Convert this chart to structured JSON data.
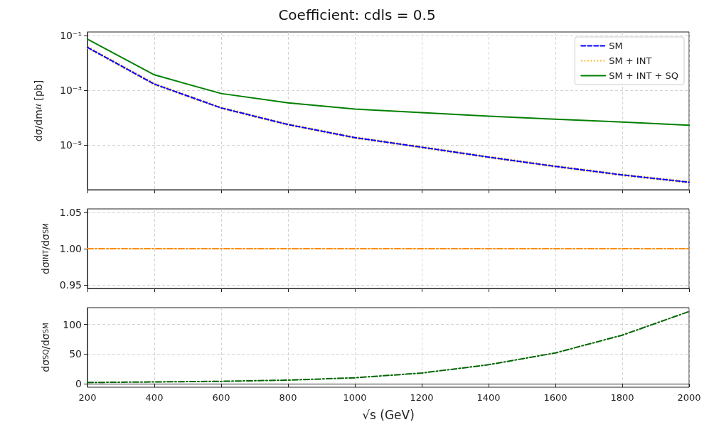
{
  "chart_data": [
    {
      "type": "line",
      "title": "Coefficient: cdls = 0.5",
      "ylabel": "dσ/dm$_{ℓℓ}$ [pb]",
      "x": [
        200,
        400,
        600,
        800,
        1000,
        1200,
        1400,
        1600,
        1800,
        2000
      ],
      "xlim": [
        200,
        2000
      ],
      "xticks": [
        200,
        400,
        600,
        800,
        1000,
        1200,
        1400,
        1600,
        1800,
        2000
      ],
      "log": "y",
      "ylim": [
        2.4e-07,
        0.135
      ],
      "yticks": [
        {
          "value": 0.1,
          "label": "10⁻¹"
        },
        {
          "value": 0.001,
          "label": "10⁻³"
        },
        {
          "value": 1e-05,
          "label": "10⁻⁵"
        }
      ],
      "grid": true,
      "legend": "top right",
      "tick_labels": "y",
      "series": [
        {
          "name": "SM",
          "color": "#0000ff",
          "line_style": "dashed",
          "values": [
            0.037,
            0.0017,
            0.00023,
            5.7e-05,
            1.9e-05,
            8.5e-06,
            3.7e-06,
            1.7e-06,
            8.3e-07,
            4.5e-07
          ]
        },
        {
          "name": "SM + INT",
          "color": "#ffa500",
          "line_style": "dotted",
          "values": [
            0.037,
            0.0017,
            0.00023,
            5.7e-05,
            1.9e-05,
            8.5e-06,
            3.7e-06,
            1.7e-06,
            8.3e-07,
            4.5e-07
          ]
        },
        {
          "name": "SM + INT + SQ",
          "color": "#008000",
          "line_style": "solid",
          "values": [
            0.074,
            0.0037,
            0.00077,
            0.00035,
            0.00021,
            0.000156,
            0.000115,
            8.9e-05,
            7e-05,
            5.4e-05
          ]
        }
      ]
    },
    {
      "type": "line",
      "ylabel": "dσ$_{INT}$/dσ$_{SM}$",
      "x": [
        200,
        400,
        600,
        800,
        1000,
        1200,
        1400,
        1600,
        1800,
        2000
      ],
      "xlim": [
        200,
        2000
      ],
      "xticks": [
        200,
        400,
        600,
        800,
        1000,
        1200,
        1400,
        1600,
        1800,
        2000
      ],
      "ylim": [
        0.945,
        1.055
      ],
      "yticks": [
        {
          "value": 0.95,
          "label": "0.95"
        },
        {
          "value": 1,
          "label": "1.00"
        },
        {
          "value": 1.05,
          "label": "1.05"
        }
      ],
      "grid": true,
      "tick_labels": "y",
      "series": [
        {
          "color": "#ff8c00",
          "line_style": "dashdot",
          "values": [
            1,
            1,
            1,
            1,
            1,
            1,
            1,
            1,
            1,
            1
          ]
        }
      ]
    },
    {
      "type": "line",
      "ylabel": "dσ$_{SQ}$/dσ$_{SM}$",
      "xlabel": "√s (GeV)",
      "x": [
        200,
        400,
        600,
        800,
        1000,
        1200,
        1400,
        1600,
        1800,
        2000
      ],
      "xlim": [
        200,
        2000
      ],
      "xticks": [
        200,
        400,
        600,
        800,
        1000,
        1200,
        1400,
        1600,
        1800,
        2000
      ],
      "ylim": [
        -6,
        128.5
      ],
      "yticks": [
        0,
        50,
        100
      ],
      "grid": true,
      "series": [
        {
          "color": "#006400",
          "line_style": "dashdot",
          "values": [
            2,
            3,
            4,
            6,
            10,
            18,
            32,
            52,
            82,
            122
          ]
        }
      ]
    }
  ]
}
